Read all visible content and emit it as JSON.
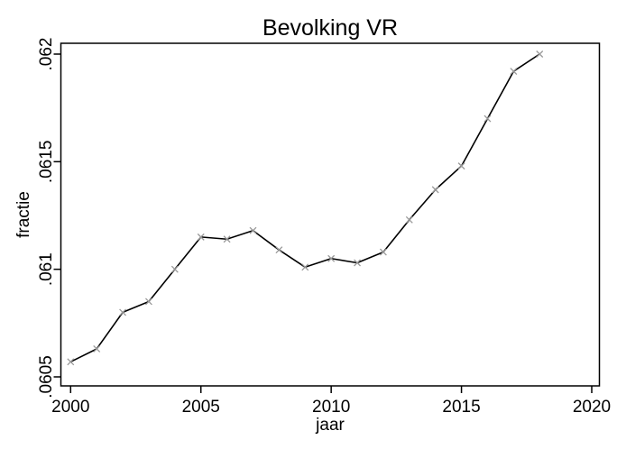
{
  "chart_data": {
    "type": "line",
    "title": "Bevolking VR",
    "xlabel": "jaar",
    "ylabel": "fractie",
    "x": [
      2000,
      2001,
      2002,
      2003,
      2004,
      2005,
      2006,
      2007,
      2008,
      2009,
      2010,
      2011,
      2012,
      2013,
      2014,
      2015,
      2016,
      2017,
      2018
    ],
    "series": [
      {
        "name": "Bevolking VR",
        "values": [
          0.06057,
          0.06063,
          0.0608,
          0.06085,
          0.061,
          0.06115,
          0.06114,
          0.06118,
          0.06109,
          0.06101,
          0.06105,
          0.06103,
          0.06108,
          0.06123,
          0.06137,
          0.06148,
          0.0617,
          0.06192,
          0.062
        ]
      }
    ],
    "xlim": [
      2000,
      2020
    ],
    "ylim": [
      0.0605,
      0.062
    ],
    "xticks": [
      2000,
      2005,
      2010,
      2015,
      2020
    ],
    "xtick_labels": [
      "2000",
      "2005",
      "2010",
      "2015",
      "2020"
    ],
    "yticks": [
      0.0605,
      0.061,
      0.0615,
      0.062
    ],
    "ytick_labels": [
      ".0605",
      ".061",
      ".0615",
      ".062"
    ],
    "grid": false,
    "legend": "none",
    "marker": "x",
    "colors": {
      "line": "#000000",
      "marker": "#999999",
      "axis": "#000000",
      "text": "#000000",
      "background": "#ffffff"
    }
  }
}
